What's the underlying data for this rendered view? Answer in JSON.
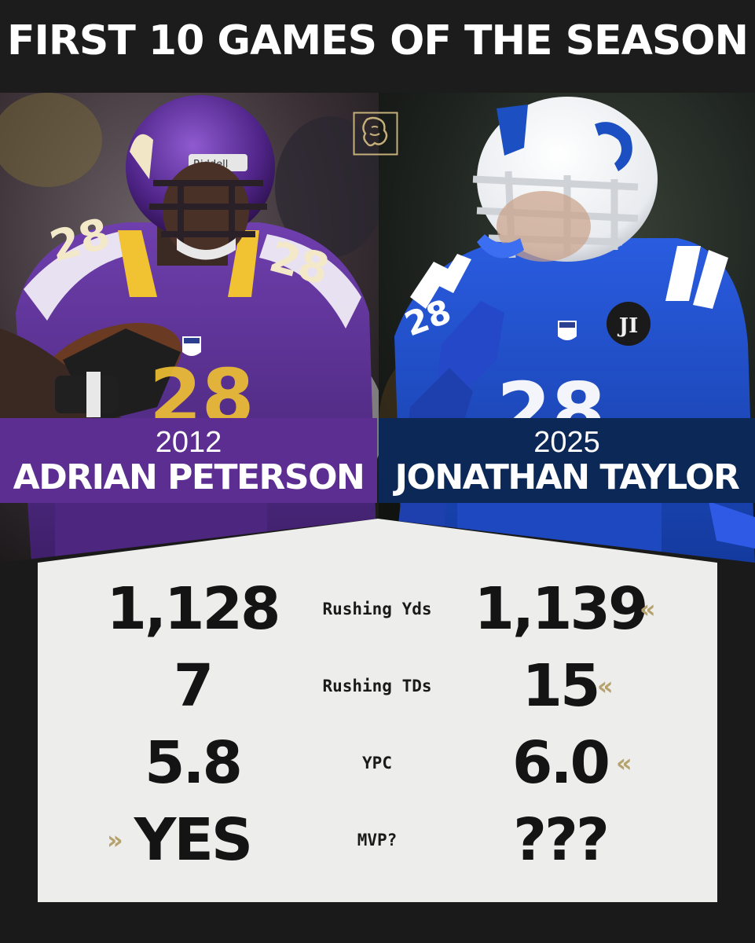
{
  "title": "FIRST 10 GAMES OF THE SEASON",
  "left_player": {
    "year": "2012",
    "name": "ADRIAN PETERSON",
    "jersey_number": "28",
    "helmet_brand": "Riddell",
    "team_color": "#5c2e91"
  },
  "right_player": {
    "year": "2025",
    "name": "JONATHAN TAYLOR",
    "jersey_number": "28",
    "patch_text": "JI",
    "team_color": "#0b2857"
  },
  "stats": [
    {
      "label": "Rushing Yds",
      "left": "1,128",
      "right": "1,139",
      "leader": "right"
    },
    {
      "label": "Rushing TDs",
      "left": "7",
      "right": "15",
      "leader": "right"
    },
    {
      "label": "YPC",
      "left": "5.8",
      "right": "6.0",
      "leader": "right"
    },
    {
      "label": "MVP?",
      "left": "YES",
      "right": "???",
      "leader": "left"
    }
  ],
  "leader_marker_left": "«",
  "leader_marker_right": "»",
  "icons": {
    "logo": "lion-logo-icon",
    "leader_left": "double-chevron-left-icon",
    "leader_right": "double-chevron-right-icon"
  },
  "colors": {
    "accent_gold": "#b6a26d",
    "background_dark": "#1a1a1a",
    "stats_panel": "#ededeb"
  }
}
